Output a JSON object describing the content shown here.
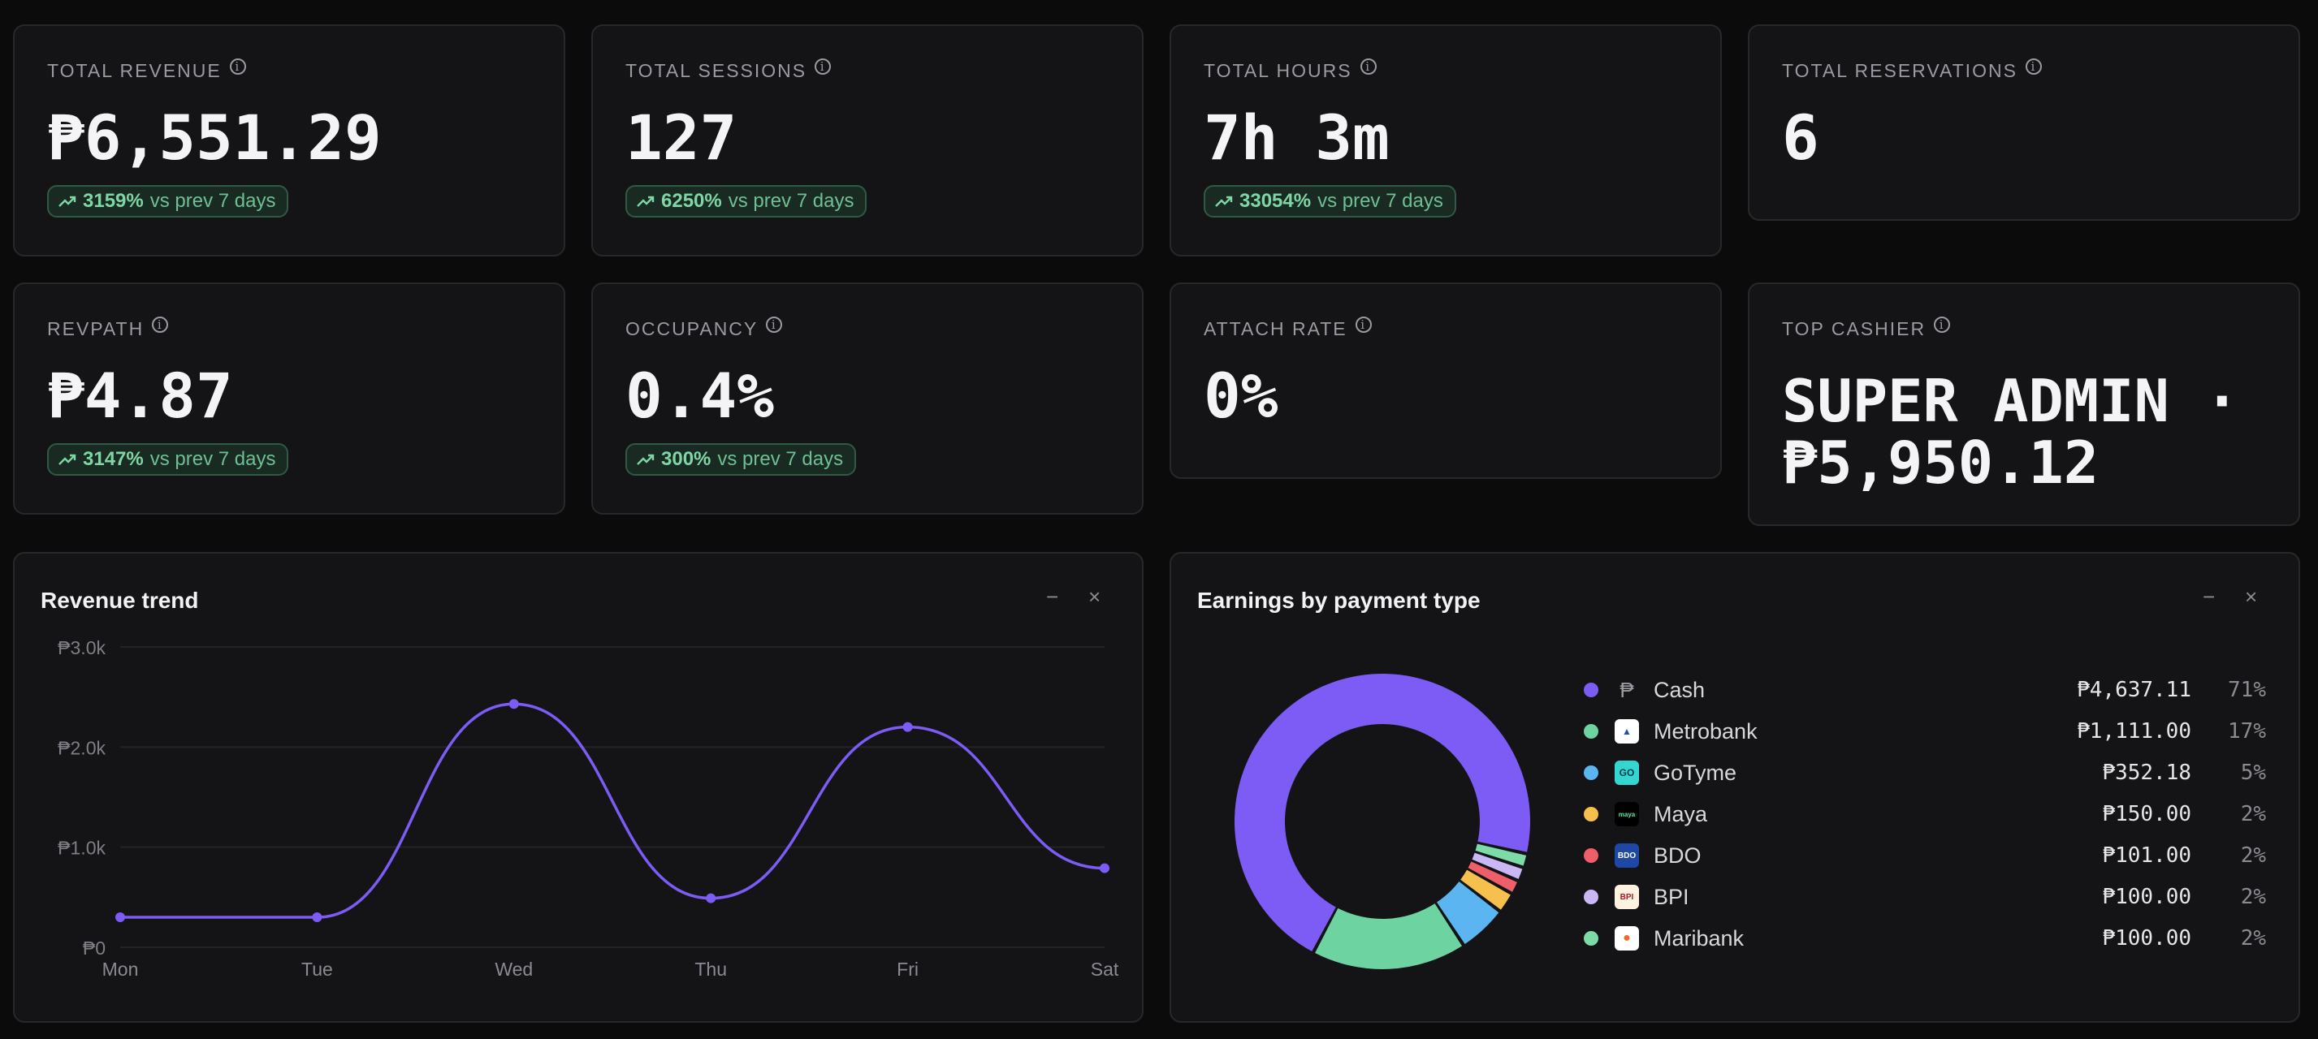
{
  "kpis": [
    {
      "label": "TOTAL REVENUE",
      "value": "₱6,551.29",
      "change": "3159%",
      "compare": "vs prev 7 days"
    },
    {
      "label": "TOTAL SESSIONS",
      "value": "127",
      "change": "6250%",
      "compare": "vs prev 7 days"
    },
    {
      "label": "TOTAL HOURS",
      "value": "7h 3m",
      "change": "33054%",
      "compare": "vs prev 7 days"
    },
    {
      "label": "TOTAL RESERVATIONS",
      "value": "6"
    },
    {
      "label": "REVPATH",
      "value": "₱4.87",
      "change": "3147%",
      "compare": "vs prev 7 days"
    },
    {
      "label": "OCCUPANCY",
      "value": "0.4%",
      "change": "300%",
      "compare": "vs prev 7 days"
    },
    {
      "label": "ATTACH RATE",
      "value": "0%"
    },
    {
      "label": "TOP CASHIER",
      "value": "SUPER ADMIN · ₱5,950.12"
    }
  ],
  "icons": {
    "info": "info-icon",
    "trend_up": "trend-up-icon",
    "minimize": "minimize-icon",
    "close": "close-icon",
    "peso": "peso-icon"
  },
  "revenue_panel": {
    "title": "Revenue trend",
    "minimize": "−",
    "close": "×"
  },
  "payment_panel": {
    "title": "Earnings by payment type",
    "minimize": "−",
    "close": "×"
  },
  "colors": {
    "accent": "#7c5cf5",
    "positive": "#7fd6a4",
    "background": "#0b0b0c",
    "card": "#141416"
  },
  "chart_data": [
    {
      "type": "line",
      "title": "Revenue trend",
      "categories": [
        "Mon",
        "Tue",
        "Wed",
        "Thu",
        "Fri",
        "Sat"
      ],
      "values": [
        300,
        300,
        2430,
        490,
        2200,
        790
      ],
      "yticks": [
        "₱0",
        "₱1.0k",
        "₱2.0k",
        "₱3.0k"
      ],
      "ylim": [
        0,
        3000
      ],
      "grid": true,
      "color": "#7c5cf5"
    },
    {
      "type": "pie",
      "title": "Earnings by payment type",
      "labels": [
        "Cash",
        "Metrobank",
        "GoTyme",
        "Maya",
        "BDO",
        "BPI",
        "Maribank"
      ],
      "values": [
        4637.11,
        1111.0,
        352.18,
        150.0,
        101.0,
        100.0,
        100.0
      ],
      "amounts": [
        "₱4,637.11",
        "₱1,111.00",
        "₱352.18",
        "₱150.00",
        "₱101.00",
        "₱100.00",
        "₱100.00"
      ],
      "percents": [
        "71%",
        "17%",
        "5%",
        "2%",
        "2%",
        "2%",
        "2%"
      ],
      "colors": [
        "#7c5cf5",
        "#6dd3a0",
        "#5bb5f0",
        "#f5c04e",
        "#ee5f6a",
        "#c9b8f5",
        "#7ddba8"
      ],
      "icon_names": [
        "peso-icon",
        "metrobank-logo-icon",
        "gotyme-logo-icon",
        "maya-logo-icon",
        "bdo-logo-icon",
        "bpi-logo-icon",
        "maribank-logo-icon"
      ],
      "legend": "right"
    }
  ]
}
